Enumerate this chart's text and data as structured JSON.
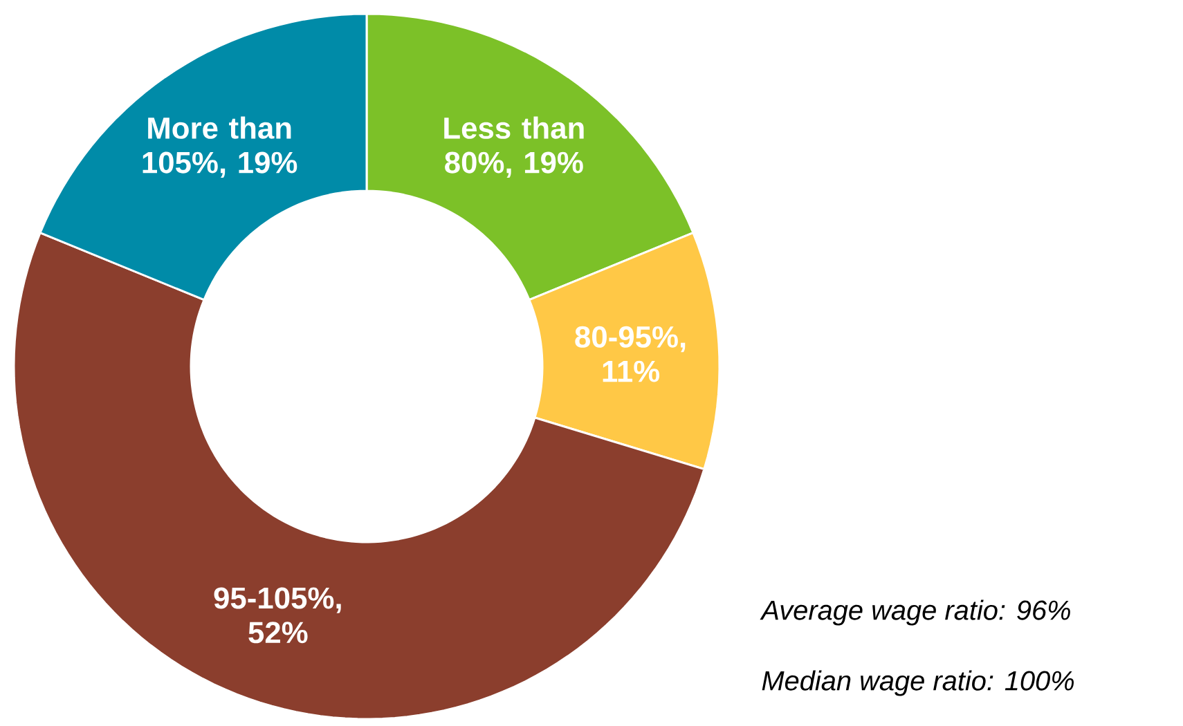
{
  "chart_data": {
    "type": "donut",
    "categories": [
      "Less than 80%, 19%",
      "80-95%, 11%",
      "95-105%, 52%",
      "More than 105%, 19%"
    ],
    "values": [
      19,
      11,
      52,
      19
    ],
    "colors": [
      "#7cc128",
      "#ffc846",
      "#8b3e2d",
      "#008ba8"
    ],
    "annotations": [
      "Average wage ratio: 96%",
      "Median wage ratio: 100%"
    ]
  }
}
